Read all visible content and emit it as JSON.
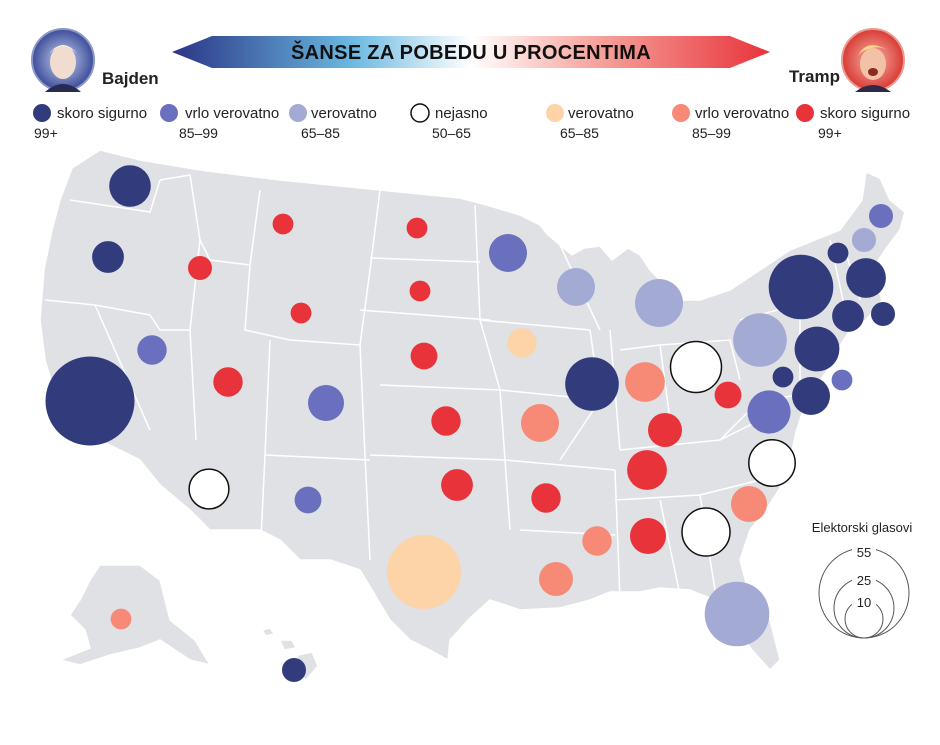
{
  "title": "ŠANSE ZA POBEDU U PROCENTIMA",
  "candidates": {
    "left": {
      "name": "Bajden"
    },
    "right": {
      "name": "Tramp"
    }
  },
  "colors": {
    "dem_sure": "#323c7c",
    "dem_likely": "#6a6fbe",
    "dem_lean": "#a3aad4",
    "tossup": "#ffffff",
    "rep_lean": "#fdd3a8",
    "rep_likely": "#f68a77",
    "rep_sure": "#e8333b"
  },
  "legend": [
    {
      "label": "skoro sigurno",
      "range": "99+",
      "category": "dem_sure"
    },
    {
      "label": "vrlo verovatno",
      "range": "85–99",
      "category": "dem_likely"
    },
    {
      "label": "verovatno",
      "range": "65–85",
      "category": "dem_lean"
    },
    {
      "label": "nejasno",
      "range": "50–65",
      "category": "tossup"
    },
    {
      "label": "verovatno",
      "range": "65–85",
      "category": "rep_lean"
    },
    {
      "label": "vrlo verovatno",
      "range": "85–99",
      "category": "rep_likely"
    },
    {
      "label": "skoro sigurno",
      "range": "99+",
      "category": "rep_sure"
    }
  ],
  "size_legend": {
    "title": "Elektorski glasovi",
    "values": [
      "55",
      "25",
      "10"
    ]
  },
  "states": [
    {
      "id": "WA",
      "category": "dem_sure",
      "ev": 12
    },
    {
      "id": "OR",
      "category": "dem_sure",
      "ev": 7
    },
    {
      "id": "CA",
      "category": "dem_sure",
      "ev": 55
    },
    {
      "id": "NV",
      "category": "dem_likely",
      "ev": 6
    },
    {
      "id": "ID",
      "category": "rep_sure",
      "ev": 4
    },
    {
      "id": "MT",
      "category": "rep_sure",
      "ev": 3
    },
    {
      "id": "WY",
      "category": "rep_sure",
      "ev": 3
    },
    {
      "id": "UT",
      "category": "rep_sure",
      "ev": 6
    },
    {
      "id": "AZ",
      "category": "tossup",
      "ev": 11
    },
    {
      "id": "CO",
      "category": "dem_likely",
      "ev": 9
    },
    {
      "id": "NM",
      "category": "dem_likely",
      "ev": 5
    },
    {
      "id": "ND",
      "category": "rep_sure",
      "ev": 3
    },
    {
      "id": "SD",
      "category": "rep_sure",
      "ev": 3
    },
    {
      "id": "NE",
      "category": "rep_sure",
      "ev": 5
    },
    {
      "id": "KS",
      "category": "rep_sure",
      "ev": 6
    },
    {
      "id": "OK",
      "category": "rep_sure",
      "ev": 7
    },
    {
      "id": "TX",
      "category": "rep_lean",
      "ev": 38
    },
    {
      "id": "MN",
      "category": "dem_likely",
      "ev": 10
    },
    {
      "id": "IA",
      "category": "rep_lean",
      "ev": 6
    },
    {
      "id": "MO",
      "category": "rep_likely",
      "ev": 10
    },
    {
      "id": "AR",
      "category": "rep_sure",
      "ev": 6
    },
    {
      "id": "LA",
      "category": "rep_likely",
      "ev": 8
    },
    {
      "id": "WI",
      "category": "dem_lean",
      "ev": 10
    },
    {
      "id": "IL",
      "category": "dem_sure",
      "ev": 20
    },
    {
      "id": "MI",
      "category": "dem_lean",
      "ev": 16
    },
    {
      "id": "IN",
      "category": "rep_likely",
      "ev": 11
    },
    {
      "id": "OH",
      "category": "tossup",
      "ev": 18
    },
    {
      "id": "KY",
      "category": "rep_sure",
      "ev": 8
    },
    {
      "id": "TN",
      "category": "rep_sure",
      "ev": 11
    },
    {
      "id": "MS",
      "category": "rep_likely",
      "ev": 6
    },
    {
      "id": "AL",
      "category": "rep_sure",
      "ev": 9
    },
    {
      "id": "GA",
      "category": "tossup",
      "ev": 16
    },
    {
      "id": "FL",
      "category": "dem_lean",
      "ev": 29
    },
    {
      "id": "SC",
      "category": "rep_likely",
      "ev": 9
    },
    {
      "id": "NC",
      "category": "tossup",
      "ev": 15
    },
    {
      "id": "VA",
      "category": "dem_likely",
      "ev": 13
    },
    {
      "id": "WV",
      "category": "rep_sure",
      "ev": 5
    },
    {
      "id": "PA",
      "category": "dem_lean",
      "ev": 20
    },
    {
      "id": "NY",
      "category": "dem_sure",
      "ev": 29
    },
    {
      "id": "NJ",
      "category": "dem_sure",
      "ev": 14
    },
    {
      "id": "DE",
      "category": "dem_sure",
      "ev": 3
    },
    {
      "id": "MD",
      "category": "dem_sure",
      "ev": 10
    },
    {
      "id": "DC",
      "category": "dem_likely",
      "ev": 3
    },
    {
      "id": "CT",
      "category": "dem_sure",
      "ev": 7
    },
    {
      "id": "RI",
      "category": "dem_sure",
      "ev": 4
    },
    {
      "id": "MA",
      "category": "dem_sure",
      "ev": 11
    },
    {
      "id": "VT",
      "category": "dem_sure",
      "ev": 3
    },
    {
      "id": "NH",
      "category": "dem_lean",
      "ev": 4
    },
    {
      "id": "ME",
      "category": "dem_likely",
      "ev": 4
    },
    {
      "id": "AK",
      "category": "rep_likely",
      "ev": 3
    },
    {
      "id": "HI",
      "category": "dem_sure",
      "ev": 4
    }
  ]
}
